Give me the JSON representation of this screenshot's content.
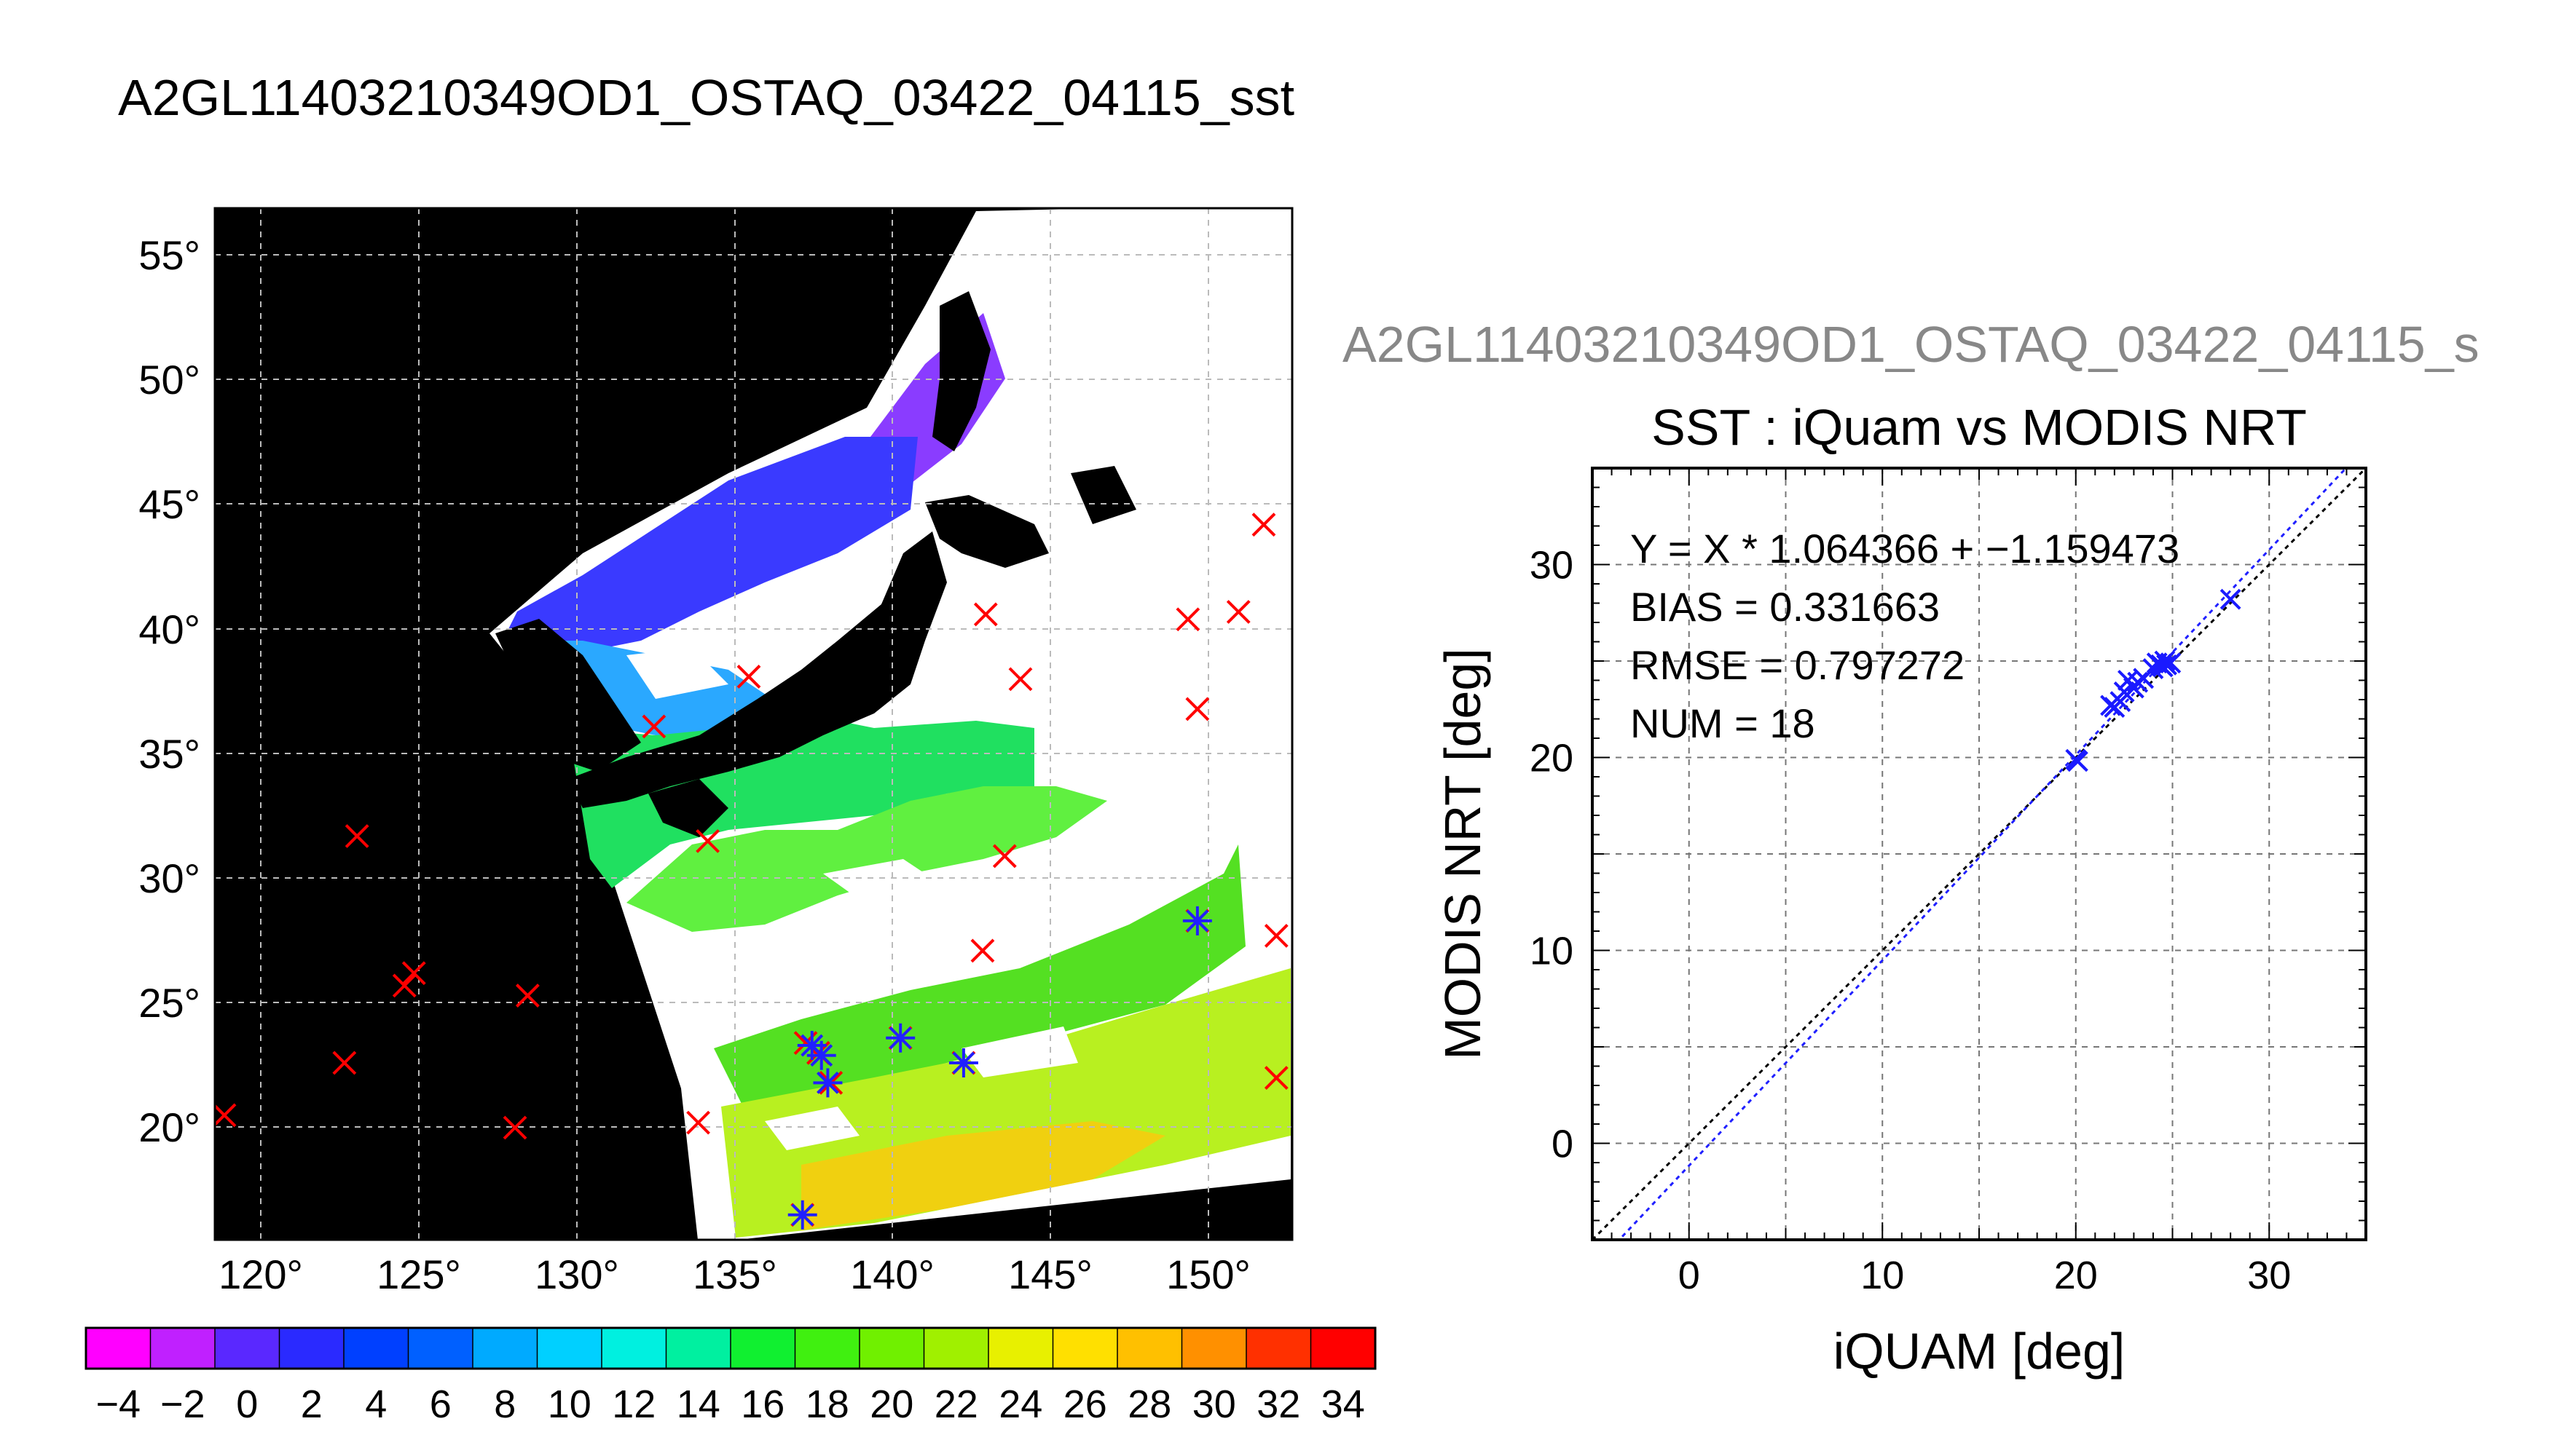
{
  "page": {
    "main_title": "A2GL11403210349OD1_OSTAQ_03422_04115_sst",
    "secondary_title": "A2GL11403210349OD1_OSTAQ_03422_04115_s"
  },
  "chart_data": [
    {
      "type": "map",
      "title": "A2GL11403210349OD1_OSTAQ_03422_04115_sst",
      "x_ticks": [
        120,
        125,
        130,
        135,
        140,
        145,
        150
      ],
      "x_tick_labels": [
        "120°",
        "125°",
        "130°",
        "135°",
        "140°",
        "145°",
        "150°"
      ],
      "y_ticks": [
        20,
        25,
        30,
        35,
        40,
        45,
        50,
        55
      ],
      "y_tick_labels": [
        "20°",
        "25°",
        "30°",
        "35°",
        "40°",
        "45°",
        "50°",
        "55°"
      ],
      "xlim": [
        118.7,
        152.8
      ],
      "ylim": [
        15.8,
        57.2
      ],
      "grid": true,
      "colorbar": {
        "range": [
          -5,
          35
        ],
        "tick_values": [
          -4,
          -2,
          0,
          2,
          4,
          6,
          8,
          10,
          12,
          14,
          16,
          18,
          20,
          22,
          24,
          26,
          28,
          30,
          32,
          34
        ],
        "tick_labels": [
          "−4",
          "−2",
          "0",
          "2",
          "4",
          "6",
          "8",
          "10",
          "12",
          "14",
          "16",
          "18",
          "20",
          "22",
          "24",
          "26",
          "28",
          "30",
          "32",
          "34"
        ]
      },
      "red_markers": [
        [
          119.0,
          20.8
        ],
        [
          123.2,
          32.0
        ],
        [
          122.8,
          22.9
        ],
        [
          124.7,
          26.0
        ],
        [
          125.0,
          26.5
        ],
        [
          128.2,
          20.3
        ],
        [
          128.6,
          25.6
        ],
        [
          132.6,
          36.4
        ],
        [
          134.0,
          20.5
        ],
        [
          134.3,
          31.8
        ],
        [
          135.6,
          38.4
        ],
        [
          137.3,
          16.8
        ],
        [
          137.4,
          23.7
        ],
        [
          137.8,
          23.3
        ],
        [
          138.2,
          22.1
        ],
        [
          140.4,
          23.9
        ],
        [
          142.4,
          22.9
        ],
        [
          143.0,
          27.4
        ],
        [
          143.1,
          40.9
        ],
        [
          143.7,
          31.2
        ],
        [
          144.2,
          38.3
        ],
        [
          149.5,
          40.7
        ],
        [
          149.8,
          37.1
        ],
        [
          149.8,
          28.6
        ],
        [
          151.1,
          41.0
        ],
        [
          151.9,
          44.5
        ],
        [
          152.3,
          28.0
        ],
        [
          152.3,
          22.3
        ]
      ],
      "blue_markers": [
        [
          137.3,
          16.8
        ],
        [
          137.6,
          23.6
        ],
        [
          137.9,
          23.2
        ],
        [
          138.1,
          22.1
        ],
        [
          140.4,
          23.9
        ],
        [
          142.4,
          22.9
        ],
        [
          149.8,
          28.6
        ]
      ]
    },
    {
      "type": "scatter",
      "super_title": "A2GL11403210349OD1_OSTAQ_03422_04115_s",
      "title": "SST : iQuam vs MODIS NRT",
      "xlabel": "iQUAM [deg]",
      "ylabel": "MODIS NRT [deg]",
      "xlim": [
        -5,
        35
      ],
      "ylim": [
        -5,
        35
      ],
      "x_ticks": [
        0,
        10,
        20,
        30
      ],
      "y_ticks": [
        0,
        10,
        20,
        30
      ],
      "grid": true,
      "annotations": [
        "Y = X * 1.064366 + −1.159473",
        "BIAS = 0.331663",
        "RMSE = 0.797272",
        "NUM = 18"
      ],
      "fit": {
        "slope": 1.064366,
        "intercept": -1.159473
      },
      "points": [
        [
          20.0,
          19.9
        ],
        [
          20.1,
          19.8
        ],
        [
          21.8,
          22.7
        ],
        [
          22.0,
          22.6
        ],
        [
          22.3,
          22.9
        ],
        [
          22.5,
          23.4
        ],
        [
          22.7,
          24.0
        ],
        [
          23.0,
          23.6
        ],
        [
          23.2,
          23.9
        ],
        [
          23.5,
          24.1
        ],
        [
          24.0,
          24.6
        ],
        [
          24.2,
          24.9
        ],
        [
          24.4,
          24.8
        ],
        [
          24.5,
          24.7
        ],
        [
          24.6,
          25.0
        ],
        [
          24.7,
          24.8
        ],
        [
          24.9,
          24.9
        ],
        [
          28.0,
          28.2
        ]
      ]
    }
  ]
}
